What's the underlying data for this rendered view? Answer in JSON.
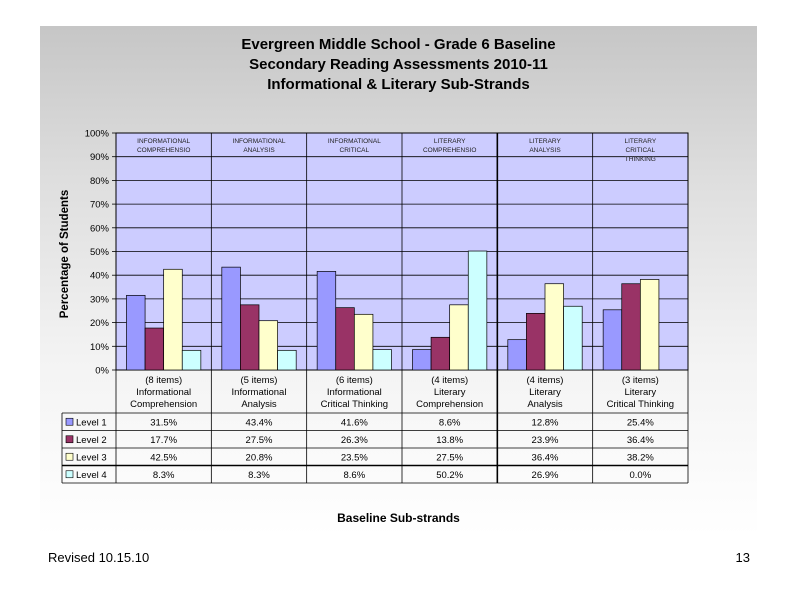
{
  "slide": {
    "title_lines": [
      "Evergreen Middle School - Grade 6 Baseline",
      "Secondary Reading Assessments 2010-11",
      "Informational & Literary Sub-Strands"
    ],
    "footer_left": "Revised 10.15.10",
    "page_number": "13"
  },
  "chart_data": {
    "type": "bar",
    "title": "Evergreen Middle School - Grade 6 Baseline\nSecondary Reading Assessments 2010-11\nInformational & Literary Sub-Strands",
    "ylabel": "Percentage of Students",
    "xlabel": "Baseline Sub-strands",
    "ylim": [
      0,
      100
    ],
    "y_ticks": [
      "0%",
      "10%",
      "20%",
      "30%",
      "40%",
      "50%",
      "60%",
      "70%",
      "80%",
      "90%",
      "100%"
    ],
    "grid": true,
    "legend": "table-left",
    "in_plot_labels": [
      [
        "INFORMATIONAL",
        "COMPREHENSIO"
      ],
      [
        "INFORMATIONAL",
        "ANALYSIS"
      ],
      [
        "INFORMATIONAL",
        "CRITICAL"
      ],
      [
        "LITERARY",
        "COMPREHENSIO"
      ],
      [
        "LITERARY",
        "ANALYSIS"
      ],
      [
        "LITERARY",
        "CRITICAL",
        "THINKING"
      ]
    ],
    "categories": [
      [
        "(8 items)",
        "Informational",
        "Comprehension"
      ],
      [
        "(5 items)",
        "Informational",
        "Analysis"
      ],
      [
        "(6 items)",
        "Informational",
        "Critical Thinking"
      ],
      [
        "(4 items)",
        "Literary",
        "Comprehension"
      ],
      [
        "(4 items)",
        "Literary",
        "Analysis"
      ],
      [
        "(3 items)",
        "Literary",
        "Critical Thinking"
      ]
    ],
    "series": [
      {
        "name": "Level 1",
        "color": "#9999ff",
        "values": [
          31.5,
          43.4,
          41.6,
          8.6,
          12.8,
          25.4
        ],
        "labels": [
          "31.5%",
          "43.4%",
          "41.6%",
          "8.6%",
          "12.8%",
          "25.4%"
        ]
      },
      {
        "name": "Level 2",
        "color": "#993366",
        "values": [
          17.7,
          27.5,
          26.3,
          13.8,
          23.9,
          36.4
        ],
        "labels": [
          "17.7%",
          "27.5%",
          "26.3%",
          "13.8%",
          "23.9%",
          "36.4%"
        ]
      },
      {
        "name": "Level 3",
        "color": "#ffffcc",
        "values": [
          42.5,
          20.8,
          23.5,
          27.5,
          36.4,
          38.2
        ],
        "labels": [
          "42.5%",
          "20.8%",
          "23.5%",
          "27.5%",
          "36.4%",
          "38.2%"
        ]
      },
      {
        "name": "Level 4",
        "color": "#ccffff",
        "values": [
          8.3,
          8.3,
          8.6,
          50.2,
          26.9,
          0.0
        ],
        "labels": [
          "8.3%",
          "8.3%",
          "8.6%",
          "50.2%",
          "26.9%",
          "0.0%"
        ]
      }
    ],
    "colors": {
      "plot_bg": "#ccccff",
      "grid": "#000000"
    }
  }
}
